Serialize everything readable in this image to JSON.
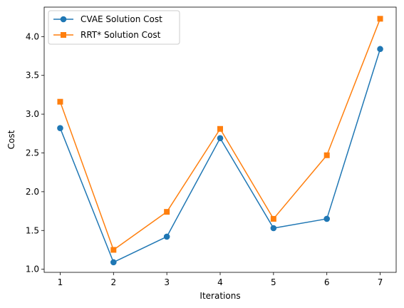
{
  "chart_data": {
    "type": "line",
    "title": "",
    "xlabel": "Iterations",
    "ylabel": "Cost",
    "x": [
      1,
      2,
      3,
      4,
      5,
      6,
      7
    ],
    "xlim": [
      0.7,
      7.3
    ],
    "ylim": [
      0.96,
      4.38
    ],
    "xticks": [
      1,
      2,
      3,
      4,
      5,
      6,
      7
    ],
    "yticks": [
      1.0,
      1.5,
      2.0,
      2.5,
      3.0,
      3.5,
      4.0
    ],
    "grid": false,
    "legend_position": "upper-left",
    "series": [
      {
        "name": "CVAE Solution Cost",
        "color": "#1f77b4",
        "marker": "circle",
        "values": [
          2.82,
          1.09,
          1.42,
          2.69,
          1.53,
          1.65,
          3.84
        ]
      },
      {
        "name": "RRT* Solution Cost",
        "color": "#ff7f0e",
        "marker": "square",
        "values": [
          3.16,
          1.25,
          1.74,
          2.81,
          1.65,
          2.47,
          4.23
        ]
      }
    ]
  }
}
